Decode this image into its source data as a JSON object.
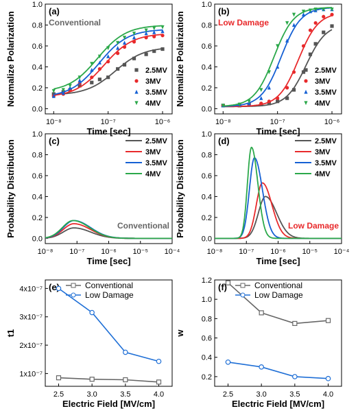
{
  "colors": {
    "2.5MV": "#555555",
    "3MV": "#e8292b",
    "3.5MV": "#1560d4",
    "4MV": "#2ba84a",
    "conventional_text": "#666666",
    "low_damage_text": "#e8292b",
    "panel_e_conventional": "#666666",
    "panel_e_low_damage": "#1f6fd6"
  },
  "chart_data": [
    {
      "panel": "(a)",
      "type": "scatter",
      "xlabel": "Time [sec]",
      "ylabel": "Normalize Polarization",
      "xscale": "log",
      "xlim": [
        7e-09,
        1.5e-06
      ],
      "ylim": [
        -0.05,
        1.0
      ],
      "yticks": [
        "0.0",
        "0.2",
        "0.4",
        "0.6",
        "0.8",
        "1.0"
      ],
      "xticks": [
        "10⁻⁸",
        "10⁻⁷",
        "10⁻⁶"
      ],
      "annotation": "Conventional",
      "legend": [
        "2.5MV",
        "3MV",
        "3.5MV",
        "4MV"
      ],
      "series": [
        {
          "name": "2.5MV",
          "x": [
            1e-08,
            1.5e-08,
            2e-08,
            3e-08,
            5e-08,
            7e-08,
            1e-07,
            1.5e-07,
            2e-07,
            3e-07,
            5e-07,
            7e-07,
            1e-06
          ],
          "y": [
            0.14,
            0.16,
            0.18,
            0.22,
            0.25,
            0.28,
            0.3,
            0.38,
            0.42,
            0.48,
            0.52,
            0.55,
            0.57
          ]
        },
        {
          "name": "3MV",
          "x": [
            1e-08,
            1.5e-08,
            2e-08,
            3e-08,
            5e-08,
            7e-08,
            1e-07,
            1.5e-07,
            2e-07,
            3e-07,
            5e-07,
            7e-07,
            1e-06
          ],
          "y": [
            0.12,
            0.14,
            0.18,
            0.24,
            0.3,
            0.38,
            0.45,
            0.53,
            0.59,
            0.64,
            0.68,
            0.69,
            0.7
          ]
        },
        {
          "name": "3.5MV",
          "x": [
            1e-08,
            1.5e-08,
            2e-08,
            3e-08,
            5e-08,
            7e-08,
            1e-07,
            1.5e-07,
            2e-07,
            3e-07,
            5e-07,
            7e-07,
            1e-06
          ],
          "y": [
            0.12,
            0.15,
            0.2,
            0.27,
            0.37,
            0.44,
            0.5,
            0.58,
            0.63,
            0.68,
            0.72,
            0.73,
            0.74
          ]
        },
        {
          "name": "4MV",
          "x": [
            1e-08,
            1.5e-08,
            2e-08,
            3e-08,
            5e-08,
            7e-08,
            1e-07,
            1.5e-07,
            2e-07,
            3e-07,
            5e-07,
            7e-07,
            1e-06
          ],
          "y": [
            0.17,
            0.18,
            0.22,
            0.3,
            0.43,
            0.5,
            0.58,
            0.63,
            0.68,
            0.72,
            0.75,
            0.77,
            0.78
          ]
        }
      ]
    },
    {
      "panel": "(b)",
      "type": "scatter",
      "xlabel": "Time [sec]",
      "ylabel": "Normalize Polarization",
      "xscale": "log",
      "xlim": [
        7e-09,
        1.5e-06
      ],
      "ylim": [
        -0.05,
        1.0
      ],
      "yticks": [
        "0.0",
        "0.2",
        "0.4",
        "0.6",
        "0.8",
        "1.0"
      ],
      "xticks": [
        "10⁻⁸",
        "10⁻⁷",
        "10⁻⁶"
      ],
      "annotation": "Low Damage",
      "legend": [
        "2.5MV",
        "3MV",
        "3.5MV",
        "4MV"
      ],
      "series": [
        {
          "name": "2.5MV",
          "x": [
            1e-08,
            2e-08,
            3e-08,
            5e-08,
            7e-08,
            1e-07,
            1.5e-07,
            2e-07,
            3e-07,
            4e-07,
            5e-07,
            7e-07,
            1e-06
          ],
          "y": [
            0.03,
            0.03,
            0.04,
            0.04,
            0.05,
            0.07,
            0.1,
            0.18,
            0.35,
            0.52,
            0.62,
            0.73,
            0.79
          ]
        },
        {
          "name": "3MV",
          "x": [
            1e-08,
            2e-08,
            3e-08,
            5e-08,
            7e-08,
            1e-07,
            1.5e-07,
            2e-07,
            3e-07,
            4e-07,
            5e-07,
            7e-07,
            1e-06
          ],
          "y": [
            0.03,
            0.03,
            0.04,
            0.05,
            0.07,
            0.1,
            0.2,
            0.35,
            0.6,
            0.75,
            0.82,
            0.88,
            0.9
          ]
        },
        {
          "name": "3.5MV",
          "x": [
            1e-08,
            2e-08,
            3e-08,
            5e-08,
            7e-08,
            1e-07,
            1.5e-07,
            2e-07,
            3e-07,
            4e-07,
            5e-07,
            7e-07,
            1e-06
          ],
          "y": [
            0.03,
            0.04,
            0.05,
            0.1,
            0.2,
            0.4,
            0.65,
            0.8,
            0.9,
            0.93,
            0.94,
            0.95,
            0.95
          ]
        },
        {
          "name": "4MV",
          "x": [
            1e-08,
            2e-08,
            3e-08,
            5e-08,
            7e-08,
            1e-07,
            1.5e-07,
            2e-07,
            3e-07,
            4e-07,
            5e-07,
            7e-07,
            1e-06
          ],
          "y": [
            0.03,
            0.04,
            0.07,
            0.18,
            0.35,
            0.6,
            0.82,
            0.9,
            0.93,
            0.94,
            0.95,
            0.95,
            0.95
          ]
        }
      ]
    },
    {
      "panel": "(c)",
      "type": "line",
      "xlabel": "Time [sec]",
      "ylabel": "Probability Distribution",
      "xscale": "log",
      "xlim": [
        1e-08,
        0.0001
      ],
      "ylim": [
        -0.05,
        1.0
      ],
      "yticks": [
        "0.0",
        "0.2",
        "0.4",
        "0.6",
        "0.8",
        "1.0"
      ],
      "xticks": [
        "10⁻⁸",
        "10⁻⁷",
        "10⁻⁶",
        "10⁻⁵",
        "10⁻⁴"
      ],
      "annotation": "Conventional",
      "legend": [
        "2.5MV",
        "3MV",
        "3.5MV",
        "4MV"
      ],
      "series": [
        {
          "name": "2.5MV",
          "peak_x": 8e-08,
          "peak_y": 0.1
        },
        {
          "name": "3MV",
          "peak_x": 8e-08,
          "peak_y": 0.14
        },
        {
          "name": "3.5MV",
          "peak_x": 8e-08,
          "peak_y": 0.17
        },
        {
          "name": "4MV",
          "peak_x": 7.5e-08,
          "peak_y": 0.17
        }
      ]
    },
    {
      "panel": "(d)",
      "type": "line",
      "xlabel": "Time [sec]",
      "ylabel": "Probability Distribution",
      "xscale": "log",
      "xlim": [
        1e-08,
        0.0001
      ],
      "ylim": [
        -0.05,
        1.0
      ],
      "yticks": [
        "0.0",
        "0.2",
        "0.4",
        "0.6",
        "0.8",
        "1.0"
      ],
      "xticks": [
        "10⁻⁸",
        "10⁻⁷",
        "10⁻⁶",
        "10⁻⁵",
        "10⁻⁴"
      ],
      "annotation": "Low Damage",
      "legend": [
        "2.5MV",
        "3MV",
        "3.5MV",
        "4MV"
      ],
      "series": [
        {
          "name": "2.5MV",
          "peak_x": 4e-07,
          "peak_y": 0.4
        },
        {
          "name": "3MV",
          "peak_x": 3.2e-07,
          "peak_y": 0.53
        },
        {
          "name": "3.5MV",
          "peak_x": 1.8e-07,
          "peak_y": 0.77
        },
        {
          "name": "4MV",
          "peak_x": 1.45e-07,
          "peak_y": 0.87
        }
      ]
    },
    {
      "panel": "(e)",
      "type": "line",
      "xlabel": "Electric Field [MV/cm]",
      "ylabel": "t1",
      "xlim": [
        2.3,
        4.2
      ],
      "ylim": [
        5.5e-08,
        4.3e-07
      ],
      "xticks": [
        "2.5",
        "3.0",
        "3.5",
        "4.0"
      ],
      "yticks": [
        "1x10⁻⁷",
        "2x10⁻⁷",
        "3x10⁻⁷",
        "4x10⁻⁷"
      ],
      "legend": [
        "Conventional",
        "Low Damage"
      ],
      "series": [
        {
          "name": "Conventional",
          "x": [
            2.5,
            3.0,
            3.5,
            4.0
          ],
          "y": [
            8.5e-08,
            8e-08,
            7.8e-08,
            7e-08
          ]
        },
        {
          "name": "Low Damage",
          "x": [
            2.5,
            3.0,
            3.5,
            4.0
          ],
          "y": [
            4e-07,
            3.15e-07,
            1.75e-07,
            1.43e-07
          ]
        }
      ]
    },
    {
      "panel": "(f)",
      "type": "line",
      "xlabel": "Electric Field [MV/cm]",
      "ylabel": "w",
      "xlim": [
        2.3,
        4.2
      ],
      "ylim": [
        0.1,
        1.2
      ],
      "xticks": [
        "2.5",
        "3.0",
        "3.5",
        "4.0"
      ],
      "yticks": [
        "0.2",
        "0.4",
        "0.6",
        "0.8",
        "1.0",
        "1.2"
      ],
      "legend": [
        "Conventional",
        "Low Damage"
      ],
      "series": [
        {
          "name": "Conventional",
          "x": [
            2.5,
            3.0,
            3.5,
            4.0
          ],
          "y": [
            1.17,
            0.86,
            0.75,
            0.78
          ]
        },
        {
          "name": "Low Damage",
          "x": [
            2.5,
            3.0,
            3.5,
            4.0
          ],
          "y": [
            0.35,
            0.3,
            0.2,
            0.18
          ]
        }
      ]
    }
  ]
}
